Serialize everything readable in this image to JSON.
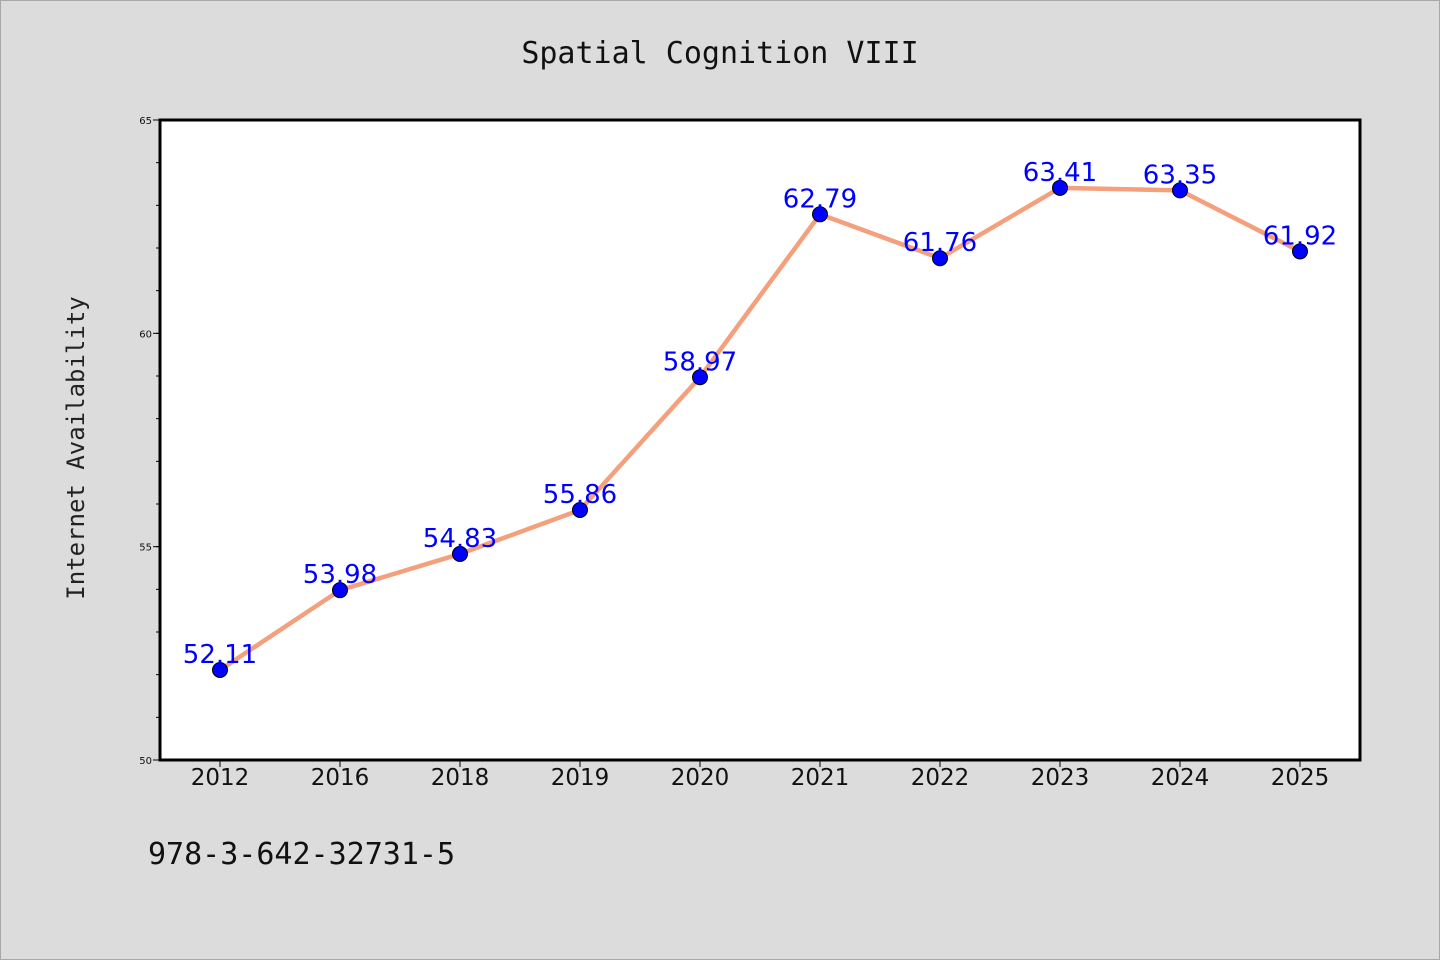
{
  "chart_data": {
    "type": "line",
    "title": "Spatial Cognition VIII",
    "ylabel": "Internet Availability",
    "xlabel": "",
    "categories": [
      "2012",
      "2016",
      "2018",
      "2019",
      "2020",
      "2021",
      "2022",
      "2023",
      "2024",
      "2025"
    ],
    "series": [
      {
        "values": [
          52.11,
          53.98,
          54.83,
          55.86,
          58.97,
          62.79,
          61.76,
          63.41,
          63.35,
          61.92
        ]
      }
    ],
    "data_labels": [
      "52.11",
      "53.98",
      "54.83",
      "55.86",
      "58.97",
      "62.79",
      "61.76",
      "63.41",
      "63.35",
      "61.92"
    ],
    "ylim": [
      50,
      65
    ],
    "yticks": [
      50,
      55,
      60,
      65
    ],
    "grid": false,
    "legend": "none",
    "colors": {
      "line": "#f4a07c",
      "marker": "#0000ff",
      "label": "#0000ff"
    }
  },
  "footer": {
    "isbn": "978-3-642-32731-5"
  }
}
